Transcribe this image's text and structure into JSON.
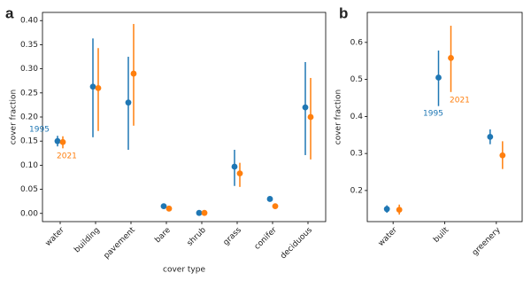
{
  "chart_data": [
    {
      "type": "point",
      "panel_label": "a",
      "x_label": "cover type",
      "y_label": "cover fraction",
      "categories": [
        "water",
        "building",
        "pavement",
        "bare",
        "shrub",
        "grass",
        "conifer",
        "deciduous"
      ],
      "ylim": [
        -0.017,
        0.417
      ],
      "yticks": [
        {
          "value": 0,
          "label": "0.00"
        },
        {
          "value": 0.05,
          "label": "0.05"
        },
        {
          "value": 0.1,
          "label": "0.10"
        },
        {
          "value": 0.15,
          "label": "0.15"
        },
        {
          "value": 0.2,
          "label": "0.20"
        },
        {
          "value": 0.25,
          "label": "0.25"
        },
        {
          "value": 0.3,
          "label": "0.30"
        },
        {
          "value": 0.35,
          "label": "0.35"
        },
        {
          "value": 0.4,
          "label": "0.40"
        }
      ],
      "series": [
        {
          "name": "1995",
          "color": "#1f77b4",
          "values": [
            0.15,
            0.263,
            0.23,
            0.015,
            0.001,
            0.097,
            0.03,
            0.22
          ],
          "low": [
            0.139,
            0.158,
            0.132,
            0.012,
            0.0,
            0.057,
            0.027,
            0.121
          ],
          "high": [
            0.161,
            0.363,
            0.325,
            0.018,
            0.002,
            0.132,
            0.033,
            0.314
          ]
        },
        {
          "name": "2021",
          "color": "#ff7f0e",
          "values": [
            0.148,
            0.26,
            0.29,
            0.01,
            0.001,
            0.083,
            0.015,
            0.2
          ],
          "low": [
            0.135,
            0.171,
            0.182,
            0.008,
            0.0,
            0.055,
            0.013,
            0.112
          ],
          "high": [
            0.16,
            0.343,
            0.393,
            0.012,
            0.002,
            0.105,
            0.017,
            0.281
          ]
        }
      ]
    },
    {
      "type": "point",
      "panel_label": "b",
      "y_label": "cover fraction",
      "categories": [
        "water",
        "built",
        "greenery"
      ],
      "ylim": [
        0.116,
        0.681
      ],
      "yticks": [
        0.2,
        0.3,
        0.4,
        0.5,
        0.6
      ],
      "series": [
        {
          "name": "1995",
          "color": "#1f77b4",
          "values": [
            0.15,
            0.505,
            0.345
          ],
          "low": [
            0.14,
            0.428,
            0.325
          ],
          "high": [
            0.16,
            0.578,
            0.365
          ]
        },
        {
          "name": "2021",
          "color": "#ff7f0e",
          "values": [
            0.148,
            0.558,
            0.295
          ],
          "low": [
            0.135,
            0.466,
            0.258
          ],
          "high": [
            0.162,
            0.645,
            0.333
          ]
        }
      ]
    }
  ]
}
